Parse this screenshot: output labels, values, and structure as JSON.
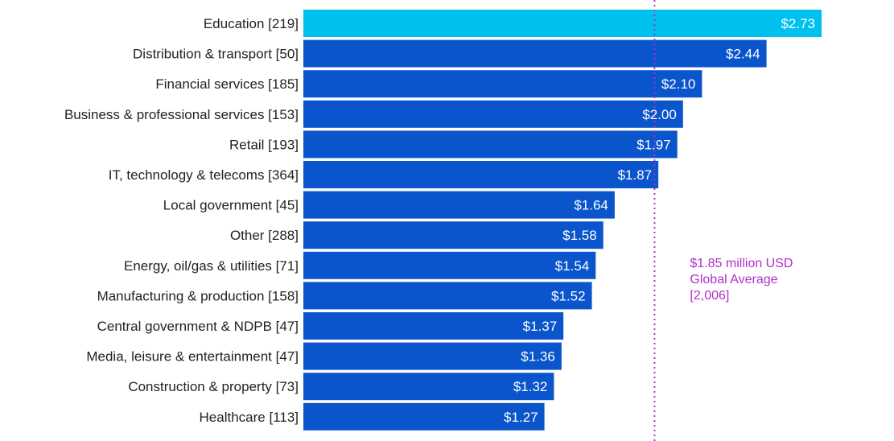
{
  "chart_data": {
    "type": "bar",
    "orientation": "horizontal",
    "categories": [
      "Education [219]",
      "Distribution & transport [50]",
      "Financial services [185]",
      "Business & professional services [153]",
      "Retail [193]",
      "IT, technology & telecoms [364]",
      "Local government [45]",
      "Other [288]",
      "Energy, oil/gas & utilities [71]",
      "Manufacturing & production [158]",
      "Central government & NDPB [47]",
      "Media, leisure & entertainment [47]",
      "Construction & property [73]",
      "Healthcare [113]"
    ],
    "values": [
      2.73,
      2.44,
      2.1,
      2.0,
      1.97,
      1.87,
      1.64,
      1.58,
      1.54,
      1.52,
      1.37,
      1.36,
      1.32,
      1.27
    ],
    "value_labels": [
      "$2.73",
      "$2.44",
      "$2.10",
      "$2.00",
      "$1.97",
      "$1.87",
      "$1.64",
      "$1.58",
      "$1.54",
      "$1.52",
      "$1.37",
      "$1.36",
      "$1.32",
      "$1.27"
    ],
    "xlim": [
      0,
      2.73
    ],
    "grid": false,
    "colors": {
      "highlight": "#00C0F0",
      "bar": "#0A55CC",
      "reference_line": "#B030C8",
      "label_text": "#222222",
      "value_text": "#FFFFFF"
    },
    "highlight_index": 0,
    "reference_line": {
      "value": 1.85,
      "style": "dotted",
      "label_lines": [
        "$1.85 million USD",
        "Global Average",
        "[2,006]"
      ]
    }
  }
}
